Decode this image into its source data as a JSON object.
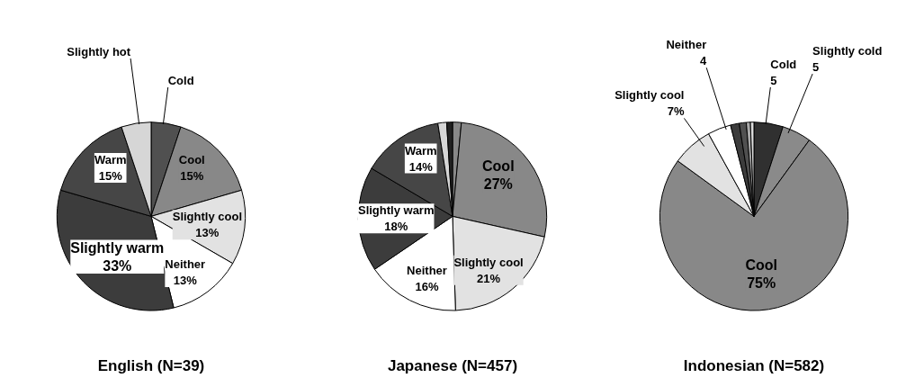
{
  "chart_data": [
    {
      "type": "pie",
      "title": "English (N=39)",
      "categories": [
        "Cold",
        "Cool",
        "Slightly cool",
        "Neither",
        "Slightly warm",
        "Warm",
        "Slightly hot"
      ],
      "values": [
        5.1,
        15.4,
        12.8,
        12.8,
        33.3,
        15.4,
        5.1
      ],
      "value_labels": [
        null,
        "15%",
        "13%",
        "13%",
        "33%",
        "15%",
        null
      ],
      "colors": [
        "#505050",
        "#888888",
        "#e2e2e2",
        "#ffffff",
        "#3c3c3c",
        "#464646",
        "#d6d6d6"
      ]
    },
    {
      "type": "pie",
      "title": "Japanese (N=457)",
      "categories": [
        null,
        "Cool",
        "Slightly cool",
        "Neither",
        "Slightly warm",
        "Warm",
        null,
        null
      ],
      "values": [
        1.5,
        27,
        21,
        16,
        18,
        14,
        1.5,
        1.0
      ],
      "value_labels": [
        null,
        "27%",
        "21%",
        "16%",
        "18%",
        "14%",
        null,
        null
      ],
      "colors": [
        "#888888",
        "#888888",
        "#e2e2e2",
        "#ffffff",
        "#3c3c3c",
        "#464646",
        "#d6d6d6",
        "#222222"
      ]
    },
    {
      "type": "pie",
      "title": "Indonesian (N=582)",
      "categories": [
        "Cold",
        "Slightly cold",
        "Cool",
        "Slightly cool",
        "Neither",
        null,
        null,
        null,
        null
      ],
      "values": [
        5,
        5,
        75,
        7,
        4,
        1.5,
        1.2,
        0.7,
        0.6
      ],
      "value_labels": [
        "5",
        "5",
        "75%",
        "7%",
        "4",
        null,
        null,
        null,
        null
      ],
      "colors": [
        "#303030",
        "#8a8a8a",
        "#888888",
        "#e2e2e2",
        "#ffffff",
        "#3c3c3c",
        "#505050",
        "#aaaaaa",
        "#dddddd"
      ]
    }
  ]
}
